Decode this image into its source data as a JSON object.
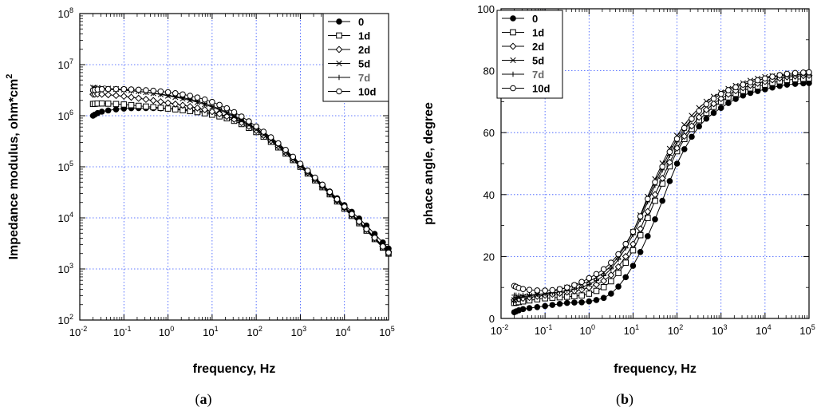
{
  "chart_data": [
    {
      "type": "line",
      "panel": "a",
      "caption": {
        "open": "(",
        "letter": "a",
        "close": ")"
      },
      "xscale": "log",
      "yscale": "log",
      "xlabel": "frequency, Hz",
      "ylabel": "Impedance modulus, ohm*cm",
      "ylabel_sup": "2",
      "xlim_log10": [
        -2,
        5
      ],
      "ylim_log10": [
        2,
        8
      ],
      "xticks": [
        {
          "base": "10",
          "exp": "-2"
        },
        {
          "base": "10",
          "exp": "-1"
        },
        {
          "base": "10",
          "exp": "0"
        },
        {
          "base": "10",
          "exp": "1"
        },
        {
          "base": "10",
          "exp": "2"
        },
        {
          "base": "10",
          "exp": "3"
        },
        {
          "base": "10",
          "exp": "4"
        },
        {
          "base": "10",
          "exp": "5"
        }
      ],
      "yticks": [
        {
          "base": "10",
          "exp": "2"
        },
        {
          "base": "10",
          "exp": "3"
        },
        {
          "base": "10",
          "exp": "4"
        },
        {
          "base": "10",
          "exp": "5"
        },
        {
          "base": "10",
          "exp": "6"
        },
        {
          "base": "10",
          "exp": "7"
        },
        {
          "base": "10",
          "exp": "8"
        }
      ],
      "grid": "dotted",
      "legend_position": "top-right",
      "series": [
        {
          "name": "0",
          "marker": "filled-circle",
          "logx": [
            -1.7,
            -1.5,
            -1.0,
            -0.5,
            0.0,
            0.5,
            1.0,
            1.5,
            2.0,
            2.5,
            3.0,
            3.5,
            4.0,
            4.5,
            5.0
          ],
          "logy": [
            6.0,
            6.08,
            6.14,
            6.15,
            6.14,
            6.11,
            6.05,
            5.94,
            5.75,
            5.45,
            5.05,
            4.65,
            4.25,
            3.85,
            3.4
          ]
        },
        {
          "name": "1d",
          "marker": "open-square",
          "logx": [
            -1.7,
            -1.5,
            -1.0,
            -0.5,
            0.0,
            0.5,
            1.0,
            1.5,
            2.0,
            2.5,
            3.0,
            3.5,
            4.0,
            4.5,
            5.0
          ],
          "logy": [
            6.23,
            6.24,
            6.22,
            6.18,
            6.14,
            6.09,
            6.02,
            5.9,
            5.68,
            5.38,
            5.0,
            4.6,
            4.18,
            3.75,
            3.3
          ]
        },
        {
          "name": "2d",
          "marker": "open-diamond",
          "logx": [
            -1.7,
            -1.5,
            -1.0,
            -0.5,
            0.0,
            0.5,
            1.0,
            1.5,
            2.0,
            2.5,
            3.0,
            3.5,
            4.0,
            4.5,
            5.0
          ],
          "logy": [
            6.42,
            6.42,
            6.38,
            6.32,
            6.25,
            6.18,
            6.08,
            5.93,
            5.71,
            5.4,
            5.02,
            4.62,
            4.2,
            3.78,
            3.33
          ]
        },
        {
          "name": "5d",
          "marker": "x",
          "logx": [
            -1.7,
            -1.5,
            -1.0,
            -0.5,
            0.0,
            0.5,
            1.0,
            1.5,
            2.0,
            2.5,
            3.0,
            3.5,
            4.0,
            4.5,
            5.0
          ],
          "logy": [
            6.55,
            6.54,
            6.51,
            6.46,
            6.39,
            6.3,
            6.17,
            5.98,
            5.73,
            5.41,
            5.02,
            4.62,
            4.2,
            3.76,
            3.3
          ]
        },
        {
          "name": "7d",
          "marker": "plus",
          "logx": [
            -1.7,
            -1.5,
            -1.0,
            -0.5,
            0.0,
            0.5,
            1.0,
            1.5,
            2.0,
            2.5,
            3.0,
            3.5,
            4.0,
            4.5,
            5.0
          ],
          "logy": [
            6.52,
            6.52,
            6.5,
            6.46,
            6.4,
            6.32,
            6.19,
            6.0,
            5.75,
            5.43,
            5.04,
            4.63,
            4.2,
            3.76,
            3.3
          ]
        },
        {
          "name": "10d",
          "marker": "open-circle",
          "logx": [
            -1.7,
            -1.5,
            -1.0,
            -0.5,
            0.0,
            0.5,
            1.0,
            1.5,
            2.0,
            2.5,
            3.0,
            3.5,
            4.0,
            4.5,
            5.0
          ],
          "logy": [
            6.5,
            6.52,
            6.52,
            6.5,
            6.46,
            6.39,
            6.27,
            6.07,
            5.79,
            5.46,
            5.06,
            4.65,
            4.22,
            3.78,
            3.32
          ]
        }
      ]
    },
    {
      "type": "line",
      "panel": "b",
      "caption": {
        "open": "(",
        "letter": "b",
        "close": ")"
      },
      "xscale": "log",
      "yscale": "linear",
      "xlabel": "frequency, Hz",
      "ylabel": "phace angle, degree",
      "xlim_log10": [
        -2,
        5
      ],
      "ylim": [
        0,
        100
      ],
      "xticks": [
        {
          "base": "10",
          "exp": "-2"
        },
        {
          "base": "10",
          "exp": "-1"
        },
        {
          "base": "10",
          "exp": "0"
        },
        {
          "base": "10",
          "exp": "1"
        },
        {
          "base": "10",
          "exp": "2"
        },
        {
          "base": "10",
          "exp": "3"
        },
        {
          "base": "10",
          "exp": "4"
        },
        {
          "base": "10",
          "exp": "5"
        }
      ],
      "yticks": [
        "0",
        "20",
        "40",
        "60",
        "80",
        "100"
      ],
      "grid": "dotted",
      "legend_position": "top-left",
      "series": [
        {
          "name": "0",
          "marker": "filled-circle",
          "logx": [
            -1.7,
            -1.5,
            -1.0,
            -0.5,
            0.0,
            0.5,
            1.0,
            1.5,
            2.0,
            2.5,
            3.0,
            3.5,
            4.0,
            4.5,
            5.0
          ],
          "y": [
            2,
            3,
            4,
            5,
            5.5,
            8,
            17,
            32,
            50,
            62,
            68,
            72,
            74,
            75.5,
            76
          ]
        },
        {
          "name": "1d",
          "marker": "open-square",
          "logx": [
            -1.7,
            -1.5,
            -1.0,
            -0.5,
            0.0,
            0.5,
            1.0,
            1.5,
            2.0,
            2.5,
            3.0,
            3.5,
            4.0,
            4.5,
            5.0
          ],
          "y": [
            5,
            5.5,
            6.5,
            7,
            8,
            12,
            22,
            38,
            54,
            64,
            70,
            73.5,
            75.5,
            77,
            77.5
          ]
        },
        {
          "name": "2d",
          "marker": "open-diamond",
          "logx": [
            -1.7,
            -1.5,
            -1.0,
            -0.5,
            0.0,
            0.5,
            1.0,
            1.5,
            2.0,
            2.5,
            3.0,
            3.5,
            4.0,
            4.5,
            5.0
          ],
          "y": [
            6,
            6.5,
            7.5,
            8.5,
            10,
            14,
            24,
            40,
            55,
            65,
            71,
            74.5,
            76.5,
            78,
            78.5
          ]
        },
        {
          "name": "5d",
          "marker": "x",
          "logx": [
            -1.7,
            -1.5,
            -1.0,
            -0.5,
            0.0,
            0.5,
            1.0,
            1.5,
            2.0,
            2.5,
            3.0,
            3.5,
            4.0,
            4.5,
            5.0
          ],
          "y": [
            6,
            7,
            8,
            10,
            12,
            17,
            28,
            45,
            59,
            68,
            73,
            76,
            78,
            78.5,
            79
          ]
        },
        {
          "name": "7d",
          "marker": "plus",
          "logx": [
            -1.7,
            -1.5,
            -1.0,
            -0.5,
            0.0,
            0.5,
            1.0,
            1.5,
            2.0,
            2.5,
            3.0,
            3.5,
            4.0,
            4.5,
            5.0
          ],
          "y": [
            7.5,
            7.5,
            8,
            9,
            11,
            16,
            27,
            43,
            57,
            67,
            72.5,
            75.5,
            77.5,
            78.5,
            79
          ]
        },
        {
          "name": "10d",
          "marker": "open-circle",
          "logx": [
            -1.7,
            -1.5,
            -1.0,
            -0.5,
            0.0,
            0.5,
            1.0,
            1.5,
            2.0,
            2.5,
            3.0,
            3.5,
            4.0,
            4.5,
            5.0
          ],
          "y": [
            10.5,
            9.5,
            9,
            10,
            13,
            18,
            28,
            44,
            58,
            67,
            72.5,
            75.5,
            77.5,
            79,
            79.5
          ]
        }
      ]
    }
  ]
}
